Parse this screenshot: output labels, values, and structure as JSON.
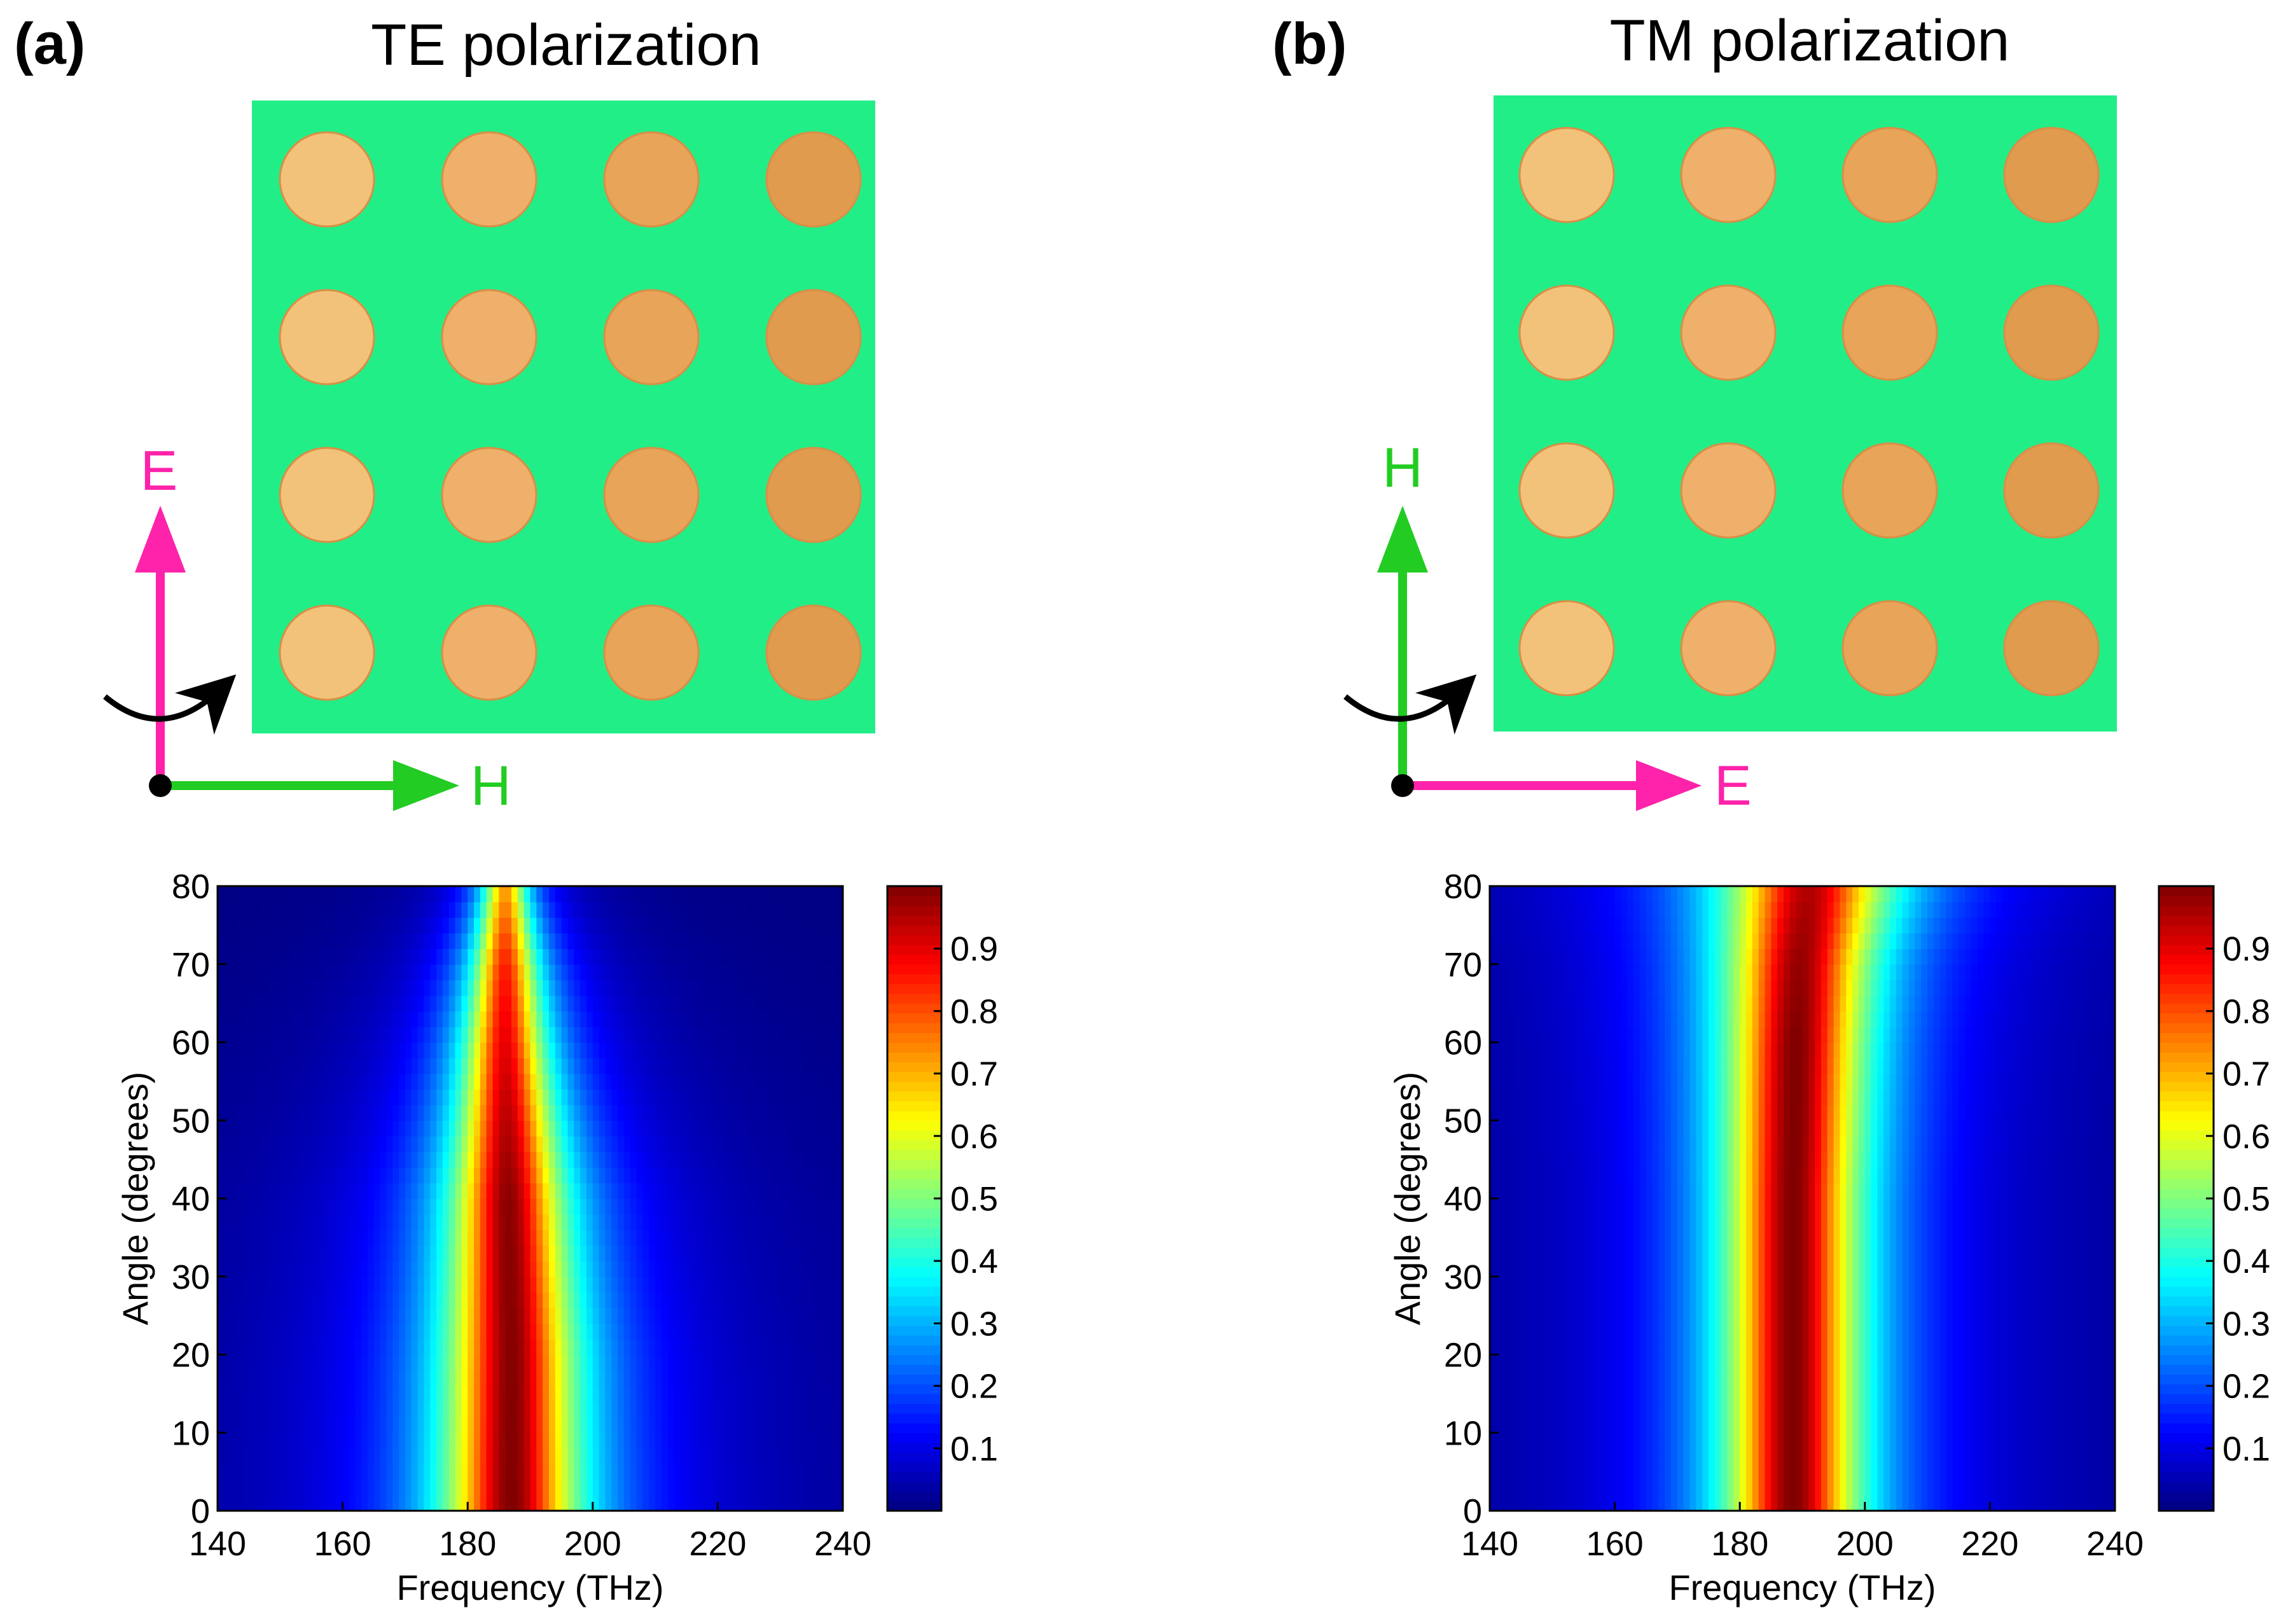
{
  "figure": {
    "colormap": "jet",
    "palette": {
      "substrate": "#22ee88",
      "disk": "#f0b060",
      "e_field": "#ff22aa",
      "h_field": "#22cc22",
      "rotation_arrow": "#000000"
    }
  },
  "panels": [
    {
      "label": "(a)",
      "title": "TE polarization",
      "sample": {
        "rows": 4,
        "cols": 4,
        "vertical_vector": "E",
        "horizontal_vector": "H"
      }
    },
    {
      "label": "(b)",
      "title": "TM polarization",
      "sample": {
        "rows": 4,
        "cols": 4,
        "vertical_vector": "H",
        "horizontal_vector": "E"
      }
    }
  ],
  "chart_data": [
    {
      "type": "heatmap",
      "panel": "(a)",
      "xlabel": "Frequency (THz)",
      "ylabel": "Angle (degrees)",
      "xlim": [
        140,
        240
      ],
      "ylim": [
        0,
        80
      ],
      "x_ticks": [
        140,
        160,
        180,
        200,
        220,
        240
      ],
      "y_ticks": [
        0,
        10,
        20,
        30,
        40,
        50,
        60,
        70,
        80
      ],
      "colorbar": {
        "min": 0,
        "max": 1,
        "ticks": [
          0.1,
          0.2,
          0.3,
          0.4,
          0.5,
          0.6,
          0.7,
          0.8,
          0.9
        ]
      },
      "resonance": {
        "center_thz": [
          [
            0,
            187
          ],
          [
            20,
            187
          ],
          [
            40,
            186.5
          ],
          [
            60,
            186
          ],
          [
            70,
            186
          ],
          [
            80,
            186
          ]
        ],
        "width_thz": [
          [
            0,
            10
          ],
          [
            20,
            9.6
          ],
          [
            40,
            8.4
          ],
          [
            60,
            6.2
          ],
          [
            70,
            5
          ],
          [
            80,
            3.6
          ]
        ],
        "peak": [
          [
            0,
            1.0
          ],
          [
            40,
            0.99
          ],
          [
            60,
            0.9
          ],
          [
            70,
            0.85
          ],
          [
            80,
            0.72
          ]
        ]
      }
    },
    {
      "type": "heatmap",
      "panel": "(b)",
      "xlabel": "Frequency (THz)",
      "ylabel": "Angle (degrees)",
      "xlim": [
        140,
        240
      ],
      "ylim": [
        0,
        80
      ],
      "x_ticks": [
        140,
        160,
        180,
        200,
        220,
        240
      ],
      "y_ticks": [
        0,
        10,
        20,
        30,
        40,
        50,
        60,
        70,
        80
      ],
      "colorbar": {
        "min": 0,
        "max": 1,
        "ticks": [
          0.1,
          0.2,
          0.3,
          0.4,
          0.5,
          0.6,
          0.7,
          0.8,
          0.9
        ]
      },
      "resonance": {
        "center_thz": [
          [
            0,
            188.5
          ],
          [
            20,
            188.5
          ],
          [
            40,
            188.5
          ],
          [
            60,
            189
          ],
          [
            70,
            189.5
          ],
          [
            80,
            191
          ]
        ],
        "width_thz": [
          [
            0,
            10
          ],
          [
            40,
            10
          ],
          [
            60,
            10.4
          ],
          [
            70,
            11
          ],
          [
            80,
            12.5
          ]
        ],
        "peak": [
          [
            0,
            1.0
          ],
          [
            40,
            1.0
          ],
          [
            60,
            1.0
          ],
          [
            70,
            0.98
          ],
          [
            80,
            0.95
          ]
        ]
      }
    }
  ]
}
